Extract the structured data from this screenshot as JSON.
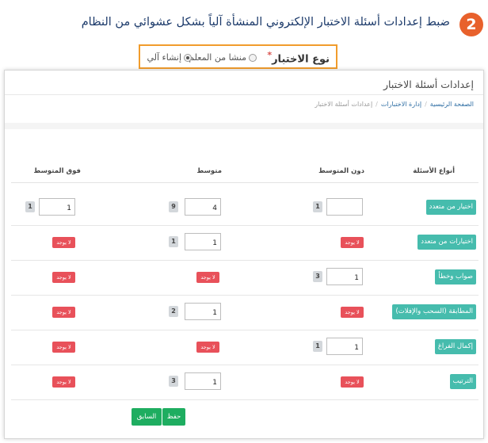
{
  "step": {
    "number": "2",
    "text": "ضبط إعدادات أسئلة الاختبار الإلكتروني المنشأة آلياً بشكل عشوائي من النظام"
  },
  "exam_type": {
    "label": "نوع الاختبار",
    "required_mark": "*",
    "options": [
      {
        "label": "منشا من المعلم",
        "checked": false
      },
      {
        "label": "إنشاء آلي",
        "checked": true
      }
    ]
  },
  "panel": {
    "title": "إعدادات أسئلة الاختبار",
    "breadcrumb": [
      "الصفحة الرئيسية",
      "إدارة الاختبارات",
      "إعدادات أسئلة الاختبار"
    ],
    "breadcrumb_separator": "/",
    "columns": {
      "types": "أنواع الأسئلة",
      "below": "دون المتوسط",
      "average": "متوسط",
      "above": "فوق المتوسط"
    },
    "none_label": "لا يوجد",
    "rows": [
      {
        "type": "اختيار من متعدد",
        "below": {
          "value": "",
          "count": "1"
        },
        "average": {
          "value": "4",
          "count": "9"
        },
        "above": {
          "value": "1",
          "count": "1"
        }
      },
      {
        "type": "اختيارات من متعدد",
        "below": null,
        "average": {
          "value": "1",
          "count": "1"
        },
        "above": null
      },
      {
        "type": "صواب وخطأ",
        "below": {
          "value": "1",
          "count": "3"
        },
        "average": null,
        "above": null
      },
      {
        "type": "المطابقة (السحب والإفلات)",
        "below": null,
        "average": {
          "value": "1",
          "count": "2"
        },
        "above": null
      },
      {
        "type": "إكمال الفراغ",
        "below": {
          "value": "1",
          "count": "1"
        },
        "average": null,
        "above": null
      },
      {
        "type": "الترتيب",
        "below": null,
        "average": {
          "value": "1",
          "count": "3"
        },
        "above": null
      }
    ],
    "buttons": {
      "save": "حفظ",
      "previous": "السابق"
    }
  },
  "colors": {
    "step_circle": "#e8612c",
    "highlight_border": "#f19c2c",
    "type_pill": "#46bcad",
    "none_badge": "#e8515a",
    "button": "#1ead60"
  }
}
